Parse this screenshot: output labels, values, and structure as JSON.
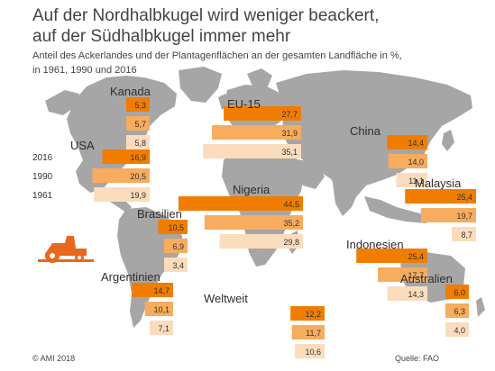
{
  "header": {
    "title_line1": "Auf der Nordhalbkugel wird weniger beackert,",
    "title_line2": "auf der Südhalbkugel immer mehr",
    "subtitle_line1": "Anteil des Ackerlandes und der Plantagenflächen an der gesamten Landfläche in %,",
    "subtitle_line2": "in 1961, 1990 und 2016"
  },
  "footer": {
    "copyright": "© AMI 2018",
    "source": "Quelle: FAO"
  },
  "colors": {
    "map_land": "#a6a6a6",
    "bar_2016": "#f07d00",
    "bar_1990": "#f7ac5e",
    "bar_1961": "#fbdcbc",
    "tractor": "#e8691b"
  },
  "icons": [
    "tractor-icon"
  ],
  "chart_data": {
    "type": "bar",
    "title": "Auf der Nordhalbkugel wird weniger beackert, auf der Südhalbkugel immer mehr",
    "subtitle": "Anteil des Ackerlandes und der Plantagenflächen an der gesamten Landfläche in %, in 1961, 1990 und 2016",
    "legend": [
      "2016",
      "1990",
      "1961"
    ],
    "legend_placement": "left, beside USA",
    "categories": [
      "Kanada",
      "USA",
      "EU-15",
      "China",
      "Brasilien",
      "Nigeria",
      "Malaysia",
      "Indonesien",
      "Argentinien",
      "Weltweit",
      "Australien"
    ],
    "series": [
      {
        "name": "2016",
        "values": [
          5.3,
          16.9,
          27.7,
          14.4,
          10.5,
          44.5,
          25.4,
          25.4,
          14.7,
          12.2,
          6.0
        ]
      },
      {
        "name": "1990",
        "values": [
          5.7,
          20.5,
          31.9,
          14.0,
          6.9,
          35.2,
          19.7,
          17.7,
          10.1,
          11.7,
          6.3
        ]
      },
      {
        "name": "1961",
        "values": [
          5.8,
          19.9,
          35.1,
          11.1,
          3.4,
          29.8,
          8.7,
          14.3,
          7.1,
          10.6,
          4.0
        ]
      }
    ],
    "value_labels": {
      "2016": [
        "5,3",
        "16,9",
        "27,7",
        "14,4",
        "10,5",
        "44,5",
        "25,4",
        "25,4",
        "14,7",
        "12,2",
        "6,0"
      ],
      "1990": [
        "5,7",
        "20,5",
        "31,9",
        "14,0",
        "6,9",
        "35,2",
        "19,7",
        "17,7",
        "10,1",
        "11,7",
        "6,3"
      ],
      "1961": [
        "5,8",
        "19,9",
        "35,1",
        "11,1",
        "3,4",
        "29,8",
        "8,7",
        "14,3",
        "7,1",
        "10,6",
        "4,0"
      ]
    },
    "grid": false
  }
}
